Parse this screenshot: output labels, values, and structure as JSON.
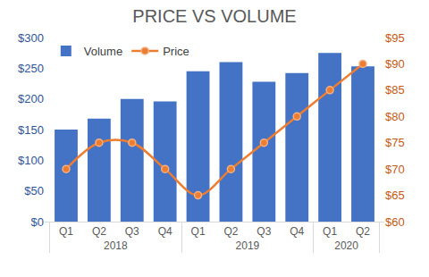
{
  "chart_data": {
    "type": "bar",
    "title": "PRICE VS VOLUME",
    "categories": [
      "Q1",
      "Q2",
      "Q3",
      "Q4",
      "Q1",
      "Q2",
      "Q3",
      "Q4",
      "Q1",
      "Q2"
    ],
    "category_groups": [
      "2018",
      "2018",
      "2018",
      "2018",
      "2019",
      "2019",
      "2019",
      "2019",
      "2020",
      "2020"
    ],
    "series": [
      {
        "name": "Volume",
        "type": "bar",
        "color": "#4472c4",
        "values": [
          150,
          168,
          200,
          196,
          245,
          260,
          228,
          242,
          275,
          253
        ]
      },
      {
        "name": "Price",
        "type": "line",
        "axis": "y2",
        "color": "#ed7d31",
        "marker": "circle",
        "line_style": "smooth",
        "values": [
          70,
          75,
          75,
          70,
          65,
          70,
          75,
          80,
          85,
          90
        ]
      }
    ],
    "ylim": [
      0,
      300
    ],
    "yticks": [
      {
        "value": 0,
        "label": "$0"
      },
      {
        "value": 50,
        "label": "$50"
      },
      {
        "value": 100,
        "label": "$100"
      },
      {
        "value": 150,
        "label": "$150"
      },
      {
        "value": 200,
        "label": "$200"
      },
      {
        "value": 250,
        "label": "$250"
      },
      {
        "value": 300,
        "label": "$300"
      }
    ],
    "y2lim": [
      60,
      95
    ],
    "y2ticks": [
      {
        "value": 60,
        "label": "$60"
      },
      {
        "value": 65,
        "label": "$65"
      },
      {
        "value": 70,
        "label": "$70"
      },
      {
        "value": 75,
        "label": "$75"
      },
      {
        "value": 80,
        "label": "$80"
      },
      {
        "value": 85,
        "label": "$85"
      },
      {
        "value": 90,
        "label": "$90"
      },
      {
        "value": 95,
        "label": "$95"
      }
    ],
    "grid": false,
    "legend": "upper left"
  }
}
